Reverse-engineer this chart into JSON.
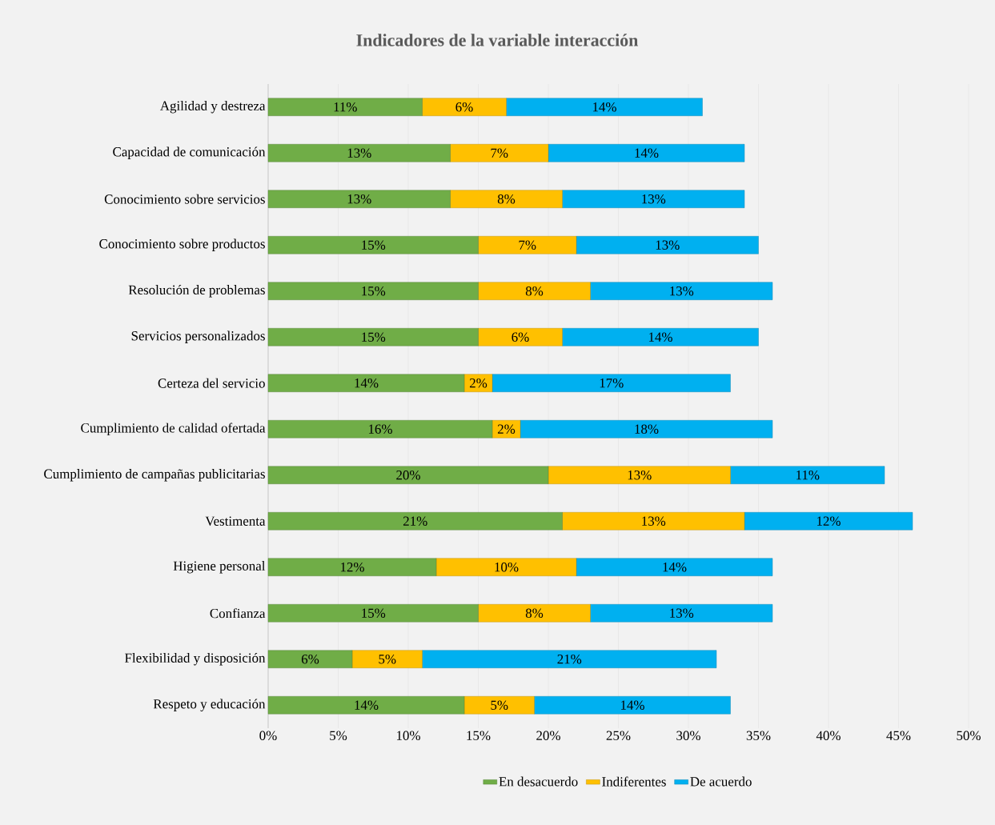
{
  "chart_data": {
    "type": "bar",
    "orientation": "horizontal",
    "stacked": true,
    "title": "Indicadores  de la variable interacción",
    "categories": [
      "Agilidad y destreza",
      "Capacidad de comunicación",
      "Conocimiento sobre servicios",
      "Conocimiento sobre productos",
      "Resolución de problemas",
      "Servicios personalizados",
      "Certeza del servicio",
      "Cumplimiento de calidad ofertada",
      "Cumplimiento de campañas publicitarias",
      "Vestimenta",
      "Higiene personal",
      "Confianza",
      "Flexibilidad y disposición",
      "Respeto y educación"
    ],
    "series": [
      {
        "name": "En desacuerdo",
        "color": "#70ad47",
        "values": [
          11,
          13,
          13,
          15,
          15,
          15,
          14,
          16,
          20,
          21,
          12,
          15,
          6,
          14
        ],
        "value_labels": [
          "11%",
          "13%",
          "13%",
          "15%",
          "15%",
          "15%",
          "14%",
          "16%",
          "20%",
          "21%",
          "12%",
          "15%",
          "6%",
          "14%"
        ]
      },
      {
        "name": "Indiferentes",
        "color": "#ffc000",
        "values": [
          6,
          7,
          8,
          7,
          8,
          6,
          2,
          2,
          13,
          13,
          10,
          8,
          5,
          5
        ],
        "value_labels": [
          "6%",
          "7%",
          "8%",
          "7%",
          "8%",
          "6%",
          "2%",
          "2%",
          "13%",
          "13%",
          "10%",
          "8%",
          "5%",
          "5%"
        ]
      },
      {
        "name": "De acuerdo",
        "color": "#00b0f0",
        "values": [
          14,
          14,
          13,
          13,
          13,
          14,
          17,
          18,
          11,
          12,
          14,
          13,
          21,
          14
        ],
        "value_labels": [
          "14%",
          "14%",
          "13%",
          "13%",
          "13%",
          "14%",
          "17%",
          "18%",
          "11%",
          "12%",
          "14%",
          "13%",
          "21%",
          "14%"
        ]
      }
    ],
    "xlim": [
      0,
      50
    ],
    "xticks": [
      {
        "value": 0,
        "label": "0%"
      },
      {
        "value": 5,
        "label": "5%"
      },
      {
        "value": 10,
        "label": "10%"
      },
      {
        "value": 15,
        "label": "15%"
      },
      {
        "value": 20,
        "label": "20%"
      },
      {
        "value": 25,
        "label": "25%"
      },
      {
        "value": 30,
        "label": "30%"
      },
      {
        "value": 35,
        "label": "35%"
      },
      {
        "value": 40,
        "label": "40%"
      },
      {
        "value": 45,
        "label": "45%"
      },
      {
        "value": 50,
        "label": "50%"
      }
    ],
    "grid": "x",
    "legend": "bottom"
  }
}
